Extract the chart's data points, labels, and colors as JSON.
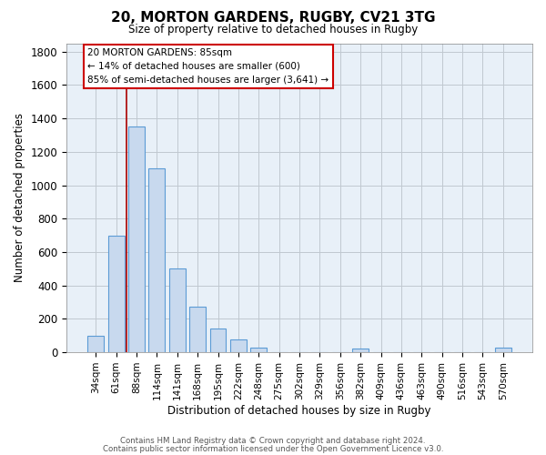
{
  "title": "20, MORTON GARDENS, RUGBY, CV21 3TG",
  "subtitle": "Size of property relative to detached houses in Rugby",
  "xlabel": "Distribution of detached houses by size in Rugby",
  "ylabel": "Number of detached properties",
  "footer_line1": "Contains HM Land Registry data © Crown copyright and database right 2024.",
  "footer_line2": "Contains public sector information licensed under the Open Government Licence v3.0.",
  "bar_labels": [
    "34sqm",
    "61sqm",
    "88sqm",
    "114sqm",
    "141sqm",
    "168sqm",
    "195sqm",
    "222sqm",
    "248sqm",
    "275sqm",
    "302sqm",
    "329sqm",
    "356sqm",
    "382sqm",
    "409sqm",
    "436sqm",
    "463sqm",
    "490sqm",
    "516sqm",
    "543sqm",
    "570sqm"
  ],
  "bar_values": [
    100,
    700,
    1350,
    1100,
    500,
    275,
    140,
    75,
    30,
    0,
    0,
    0,
    0,
    20,
    0,
    0,
    0,
    0,
    0,
    0,
    30
  ],
  "bar_color": "#c8d9ee",
  "bar_edge_color": "#5b9bd5",
  "plot_bg_color": "#e8f0f8",
  "vline_x_index": 2,
  "vline_color": "#aa0000",
  "annotation_title": "20 MORTON GARDENS: 85sqm",
  "annotation_line1": "← 14% of detached houses are smaller (600)",
  "annotation_line2": "85% of semi-detached houses are larger (3,641) →",
  "annotation_box_color": "#ffffff",
  "annotation_box_edgecolor": "#cc0000",
  "ylim": [
    0,
    1850
  ],
  "yticks": [
    0,
    200,
    400,
    600,
    800,
    1000,
    1200,
    1400,
    1600,
    1800
  ],
  "background_color": "#ffffff",
  "grid_color": "#c0c8d0"
}
